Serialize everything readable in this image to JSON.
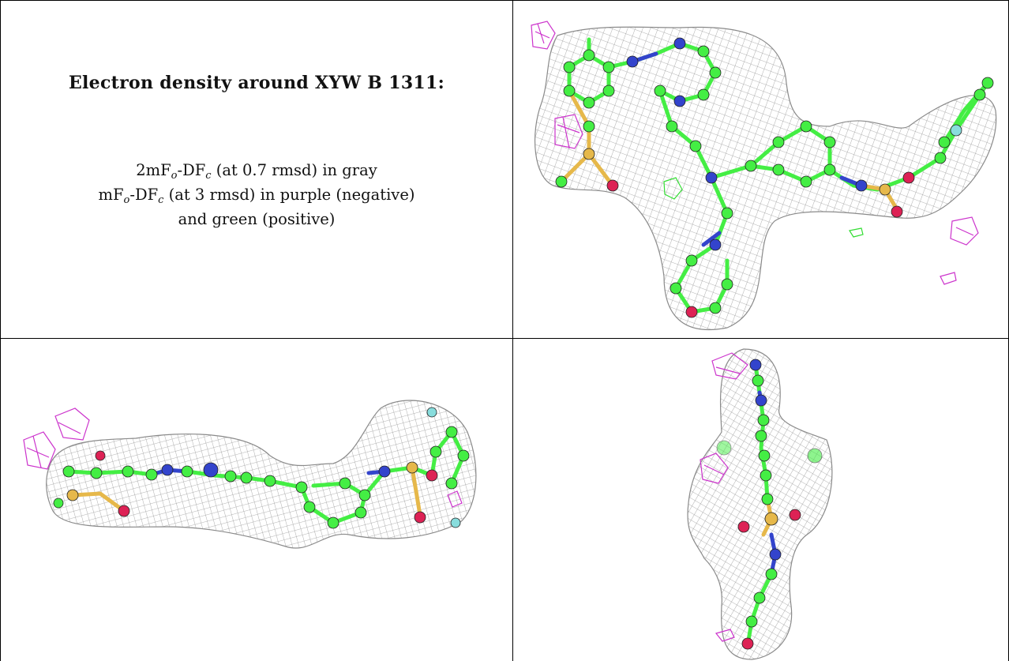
{
  "caption": {
    "title": "Electron density around XYW B 1311:",
    "line1_base": "2mF",
    "line1_sub1": "o",
    "line1_mid": "-DF",
    "line1_sub2": "c",
    "line1_rest": " (at 0.7 rmsd) in gray",
    "line2_base": "mF",
    "line2_sub1": "o",
    "line2_mid": "-DF",
    "line2_sub2": "c",
    "line2_rest": " (at 3 rmsd) in purple (negative)",
    "line3": "and green (positive)"
  },
  "panels": [
    {
      "name": "view-top-right",
      "view": "top"
    },
    {
      "name": "view-bottom-left",
      "view": "side"
    },
    {
      "name": "view-bottom-right",
      "view": "end-on"
    }
  ],
  "colors": {
    "mesh_gray": "#9a9a9a",
    "negative_purple": "#cc33cc",
    "positive_green": "#33dd33",
    "carbon": "#44ee44",
    "nitrogen": "#3344cc",
    "oxygen": "#dd2255",
    "sulfur": "#e6b84a",
    "fluorine": "#88dddd"
  }
}
